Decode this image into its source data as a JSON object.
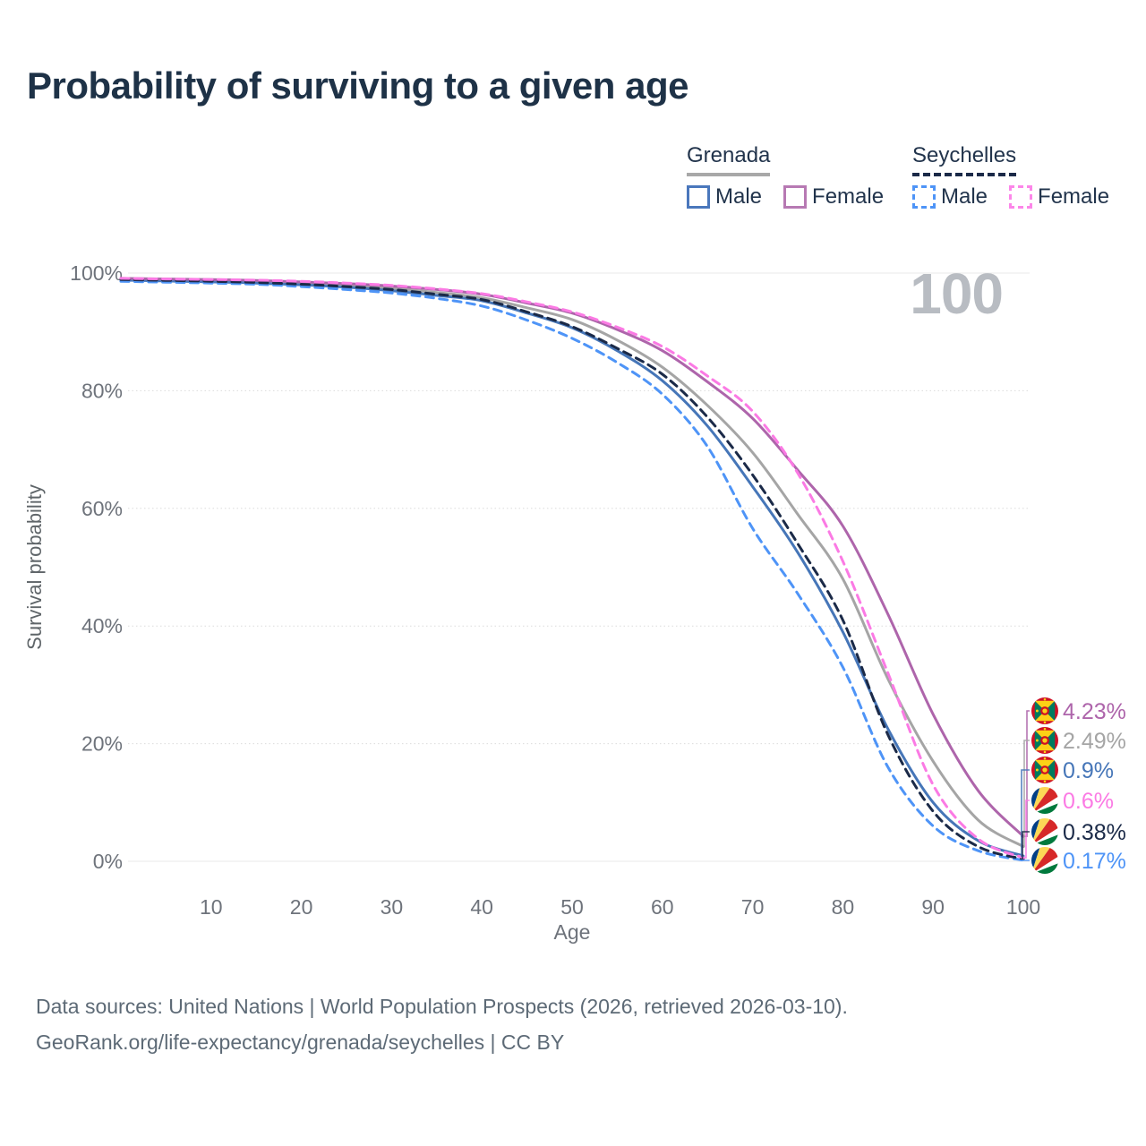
{
  "title": "Probability of surviving to a given age",
  "watermark_age": "100",
  "legend": {
    "groups": [
      {
        "label": "Grenada",
        "line_style": "solid",
        "underline_color": "#a8a8a8",
        "items": [
          {
            "label": "Male",
            "color": "#4a77bc",
            "style": "solid"
          },
          {
            "label": "Female",
            "color": "#b779b3",
            "style": "solid"
          }
        ]
      },
      {
        "label": "Seychelles",
        "line_style": "dashed",
        "underline_color": "#1b2a48",
        "items": [
          {
            "label": "Male",
            "color": "#4e94f7",
            "style": "dashed"
          },
          {
            "label": "Female",
            "color": "#fc86e9",
            "style": "dashed"
          }
        ]
      }
    ]
  },
  "chart_data": {
    "type": "line",
    "title": "Probability of surviving to a given age",
    "xlabel": "Age",
    "ylabel": "Survival probability",
    "xlim": [
      0,
      100
    ],
    "ylim": [
      0,
      100
    ],
    "grid": "horizontal",
    "x_ticks": [
      10,
      20,
      30,
      40,
      50,
      60,
      70,
      80,
      90,
      100
    ],
    "y_ticks": [
      0,
      20,
      40,
      60,
      80,
      100
    ],
    "y_tick_labels": [
      "0%",
      "20%",
      "40%",
      "60%",
      "80%",
      "100%"
    ],
    "x": [
      0,
      5,
      10,
      15,
      20,
      25,
      30,
      35,
      40,
      45,
      50,
      55,
      60,
      65,
      70,
      75,
      80,
      85,
      90,
      95,
      100
    ],
    "series": [
      {
        "id": "grenada_all",
        "name": "Grenada",
        "country": "Grenada",
        "sex": "both",
        "color": "#a5a5a5",
        "dashed": false,
        "values": [
          99.0,
          98.85,
          98.7,
          98.5,
          98.2,
          97.9,
          97.4,
          96.7,
          95.8,
          94.1,
          92.1,
          88.6,
          84.0,
          77.5,
          69.5,
          59.0,
          48.0,
          31.0,
          17.0,
          7.0,
          2.49
        ],
        "end_value_label": "2.49%"
      },
      {
        "id": "grenada_male",
        "name": "Grenada Male",
        "country": "Grenada",
        "sex": "male",
        "color": "#4676b8",
        "dashed": false,
        "values": [
          98.8,
          98.65,
          98.5,
          98.3,
          98.0,
          97.6,
          97.0,
          96.2,
          95.3,
          93.2,
          90.7,
          86.8,
          81.7,
          74.0,
          63.7,
          52.5,
          39.0,
          22.5,
          10.0,
          3.5,
          0.9
        ],
        "end_value_label": "0.9%"
      },
      {
        "id": "grenada_female",
        "name": "Grenada Female",
        "country": "Grenada",
        "sex": "female",
        "color": "#ae65ab",
        "dashed": false,
        "values": [
          99.1,
          99.0,
          98.9,
          98.75,
          98.5,
          98.2,
          97.8,
          97.2,
          96.4,
          94.9,
          93.2,
          90.4,
          86.8,
          81.5,
          75.3,
          66.5,
          57.0,
          42.0,
          25.0,
          12.0,
          4.23
        ],
        "end_value_label": "4.23%"
      },
      {
        "id": "seychelles_male",
        "name": "Seychelles Male",
        "country": "Seychelles",
        "sex": "male",
        "color": "#4e94f7",
        "dashed": true,
        "values": [
          98.6,
          98.45,
          98.3,
          98.1,
          97.7,
          97.2,
          96.6,
          95.7,
          94.4,
          92.0,
          88.9,
          84.8,
          79.4,
          70.5,
          56.6,
          45.5,
          33.0,
          16.0,
          6.0,
          1.8,
          0.17
        ],
        "end_value_label": "0.17%"
      },
      {
        "id": "seychelles_all",
        "name": "Seychelles",
        "country": "Seychelles",
        "sex": "both",
        "color": "#1b2a48",
        "dashed": true,
        "values": [
          98.9,
          98.75,
          98.6,
          98.4,
          98.1,
          97.7,
          97.2,
          96.4,
          95.5,
          93.4,
          90.9,
          87.2,
          82.8,
          75.5,
          65.7,
          54.0,
          41.0,
          21.5,
          8.5,
          2.5,
          0.38
        ],
        "end_value_label": "0.38%"
      },
      {
        "id": "seychelles_female",
        "name": "Seychelles Female",
        "country": "Seychelles",
        "sex": "female",
        "color": "#fb7ae4",
        "dashed": true,
        "values": [
          99.1,
          99.0,
          98.9,
          98.8,
          98.6,
          98.3,
          97.9,
          97.3,
          96.5,
          95.1,
          93.4,
          90.8,
          87.5,
          82.5,
          76.5,
          66.0,
          51.0,
          32.0,
          13.0,
          3.8,
          0.6
        ],
        "end_value_label": "0.6%"
      }
    ],
    "end_labels": [
      {
        "text": "4.23%",
        "series": "grenada_female",
        "flag": "grenada"
      },
      {
        "text": "2.49%",
        "series": "grenada_all",
        "flag": "grenada"
      },
      {
        "text": "0.9%",
        "series": "grenada_male",
        "flag": "grenada"
      },
      {
        "text": "0.6%",
        "series": "seychelles_female",
        "flag": "seychelles"
      },
      {
        "text": "0.38%",
        "series": "seychelles_all",
        "flag": "seychelles"
      },
      {
        "text": "0.17%",
        "series": "seychelles_male",
        "flag": "seychelles"
      }
    ],
    "legend_position": "top-right"
  },
  "footer": {
    "line1": "Data sources: United Nations | World Population Prospects (2026, retrieved 2026-03-10).",
    "line2": "GeoRank.org/life-expectancy/grenada/seychelles | CC BY"
  },
  "colors": {
    "title": "#1e3247",
    "axis_text": "#6e737b",
    "grid": "#e9e9e9",
    "watermark": "#b8bcc2",
    "footer_text": "#5d6a76"
  }
}
